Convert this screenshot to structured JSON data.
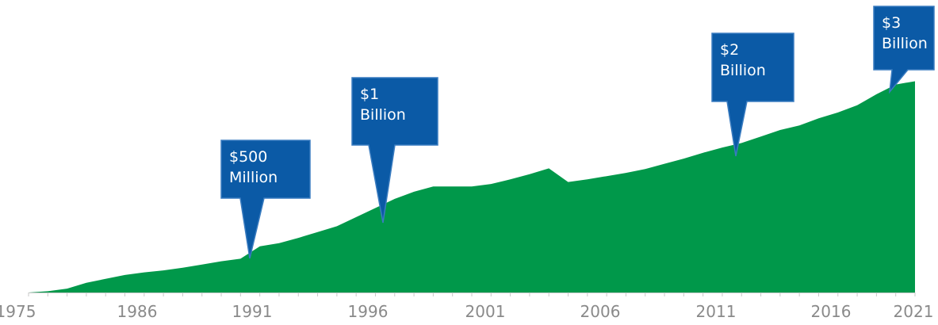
{
  "chart_data": {
    "type": "area",
    "title": "",
    "xlabel": "",
    "ylabel": "",
    "x_tick_labels": [
      "1975",
      "1986",
      "1991",
      "1996",
      "2001",
      "2006",
      "2011",
      "2016",
      "2021"
    ],
    "xlim": [
      1975,
      2021
    ],
    "ylim": [
      0,
      3.4
    ],
    "grid": false,
    "colors": {
      "area": "#00984a",
      "callout": "#0b5aa6",
      "callout_border": "#3a7cc0",
      "tick_label": "#8a8a8a",
      "axis": "#c8c8c8"
    },
    "series": [
      {
        "x": [
          1975,
          1976,
          1977,
          1978,
          1979,
          1980,
          1981,
          1982,
          1983,
          1984,
          1985,
          1986,
          1987,
          1988,
          1989,
          1990,
          1991,
          1992,
          1993,
          1994,
          1995,
          1996,
          1997,
          1998,
          1999,
          2000,
          2001,
          2002,
          2003,
          2004,
          2005,
          2006,
          2007,
          2008,
          2009,
          2010,
          2011,
          2012,
          2013,
          2014,
          2015,
          2016,
          2017,
          2018,
          2019,
          2020,
          2021
        ],
        "y": [
          0,
          0.02,
          0.06,
          0.15,
          0.21,
          0.27,
          0.31,
          0.34,
          0.38,
          0.43,
          0.48,
          0.52,
          0.71,
          0.76,
          0.84,
          0.93,
          1.02,
          1.16,
          1.3,
          1.44,
          1.55,
          1.63,
          1.63,
          1.63,
          1.67,
          1.74,
          1.82,
          1.91,
          1.7,
          1.74,
          1.79,
          1.84,
          1.9,
          1.98,
          2.06,
          2.15,
          2.23,
          2.3,
          2.4,
          2.5,
          2.57,
          2.68,
          2.77,
          2.88,
          3.05,
          3.2,
          3.25
        ]
      }
    ],
    "annotations": [
      {
        "x": 1991,
        "y": 0.52,
        "lines": [
          "$500",
          "Million"
        ]
      },
      {
        "x": 1997,
        "y": 1.02,
        "lines": [
          "$1",
          "Billion"
        ]
      },
      {
        "x": 2013,
        "y": 2.0,
        "lines": [
          "$2",
          "Billion"
        ]
      },
      {
        "x": 2020,
        "y": 3.05,
        "lines": [
          "$3",
          "Billion"
        ]
      }
    ]
  }
}
